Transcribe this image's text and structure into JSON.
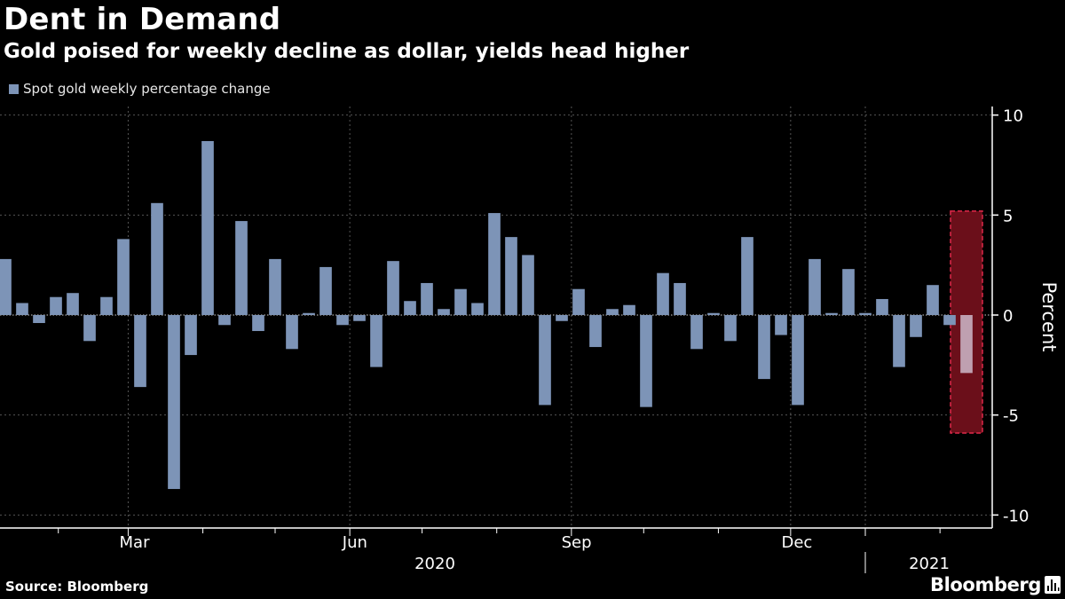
{
  "colors": {
    "background": "#000000",
    "bar": "#7d94b7",
    "highlight_bar": "#bfa0b0",
    "highlight_fill": "#6b0f1a",
    "highlight_border": "#e0284a",
    "grid": "#555555",
    "axis": "#ffffff"
  },
  "footer": {
    "source": "Source: Bloomberg",
    "brand": "Bloomberg",
    "brand_icon": "bloomberg-terminal-icon"
  },
  "chart_data": {
    "type": "bar",
    "title": "Dent in Demand",
    "subtitle": "Gold poised for weekly decline as dollar, yields head higher",
    "ylabel": "Percent",
    "ylim": [
      -10.5,
      10.5
    ],
    "yticks": [
      10,
      5,
      0,
      -5,
      -10
    ],
    "grid": true,
    "legend": {
      "position": "top-left"
    },
    "x_month_labels": [
      "Mar",
      "Jun",
      "Sep",
      "Dec"
    ],
    "x_year_labels": [
      "2020",
      "2021"
    ],
    "highlight_last_bar": true,
    "series": [
      {
        "name": "Spot gold weekly percentage change",
        "dates": [
          "2020-01-10",
          "2020-01-17",
          "2020-01-24",
          "2020-01-31",
          "2020-02-07",
          "2020-02-14",
          "2020-02-21",
          "2020-02-28",
          "2020-03-06",
          "2020-03-13",
          "2020-03-20",
          "2020-03-27",
          "2020-04-03",
          "2020-04-10",
          "2020-04-17",
          "2020-04-24",
          "2020-05-01",
          "2020-05-08",
          "2020-05-15",
          "2020-05-22",
          "2020-05-29",
          "2020-06-05",
          "2020-06-12",
          "2020-06-19",
          "2020-06-26",
          "2020-07-03",
          "2020-07-10",
          "2020-07-17",
          "2020-07-24",
          "2020-07-31",
          "2020-08-07",
          "2020-08-14",
          "2020-08-21",
          "2020-08-28",
          "2020-09-04",
          "2020-09-11",
          "2020-09-18",
          "2020-09-25",
          "2020-10-02",
          "2020-10-09",
          "2020-10-16",
          "2020-10-23",
          "2020-10-30",
          "2020-11-06",
          "2020-11-13",
          "2020-11-20",
          "2020-11-27",
          "2020-12-04",
          "2020-12-11",
          "2020-12-18",
          "2020-12-25",
          "2021-01-01",
          "2021-01-08",
          "2021-01-15",
          "2021-01-22",
          "2021-01-29",
          "2021-02-05",
          "2021-02-12"
        ],
        "values": [
          2.8,
          0.6,
          -0.4,
          0.9,
          1.1,
          -1.3,
          0.9,
          3.8,
          -3.6,
          5.6,
          -8.7,
          -2.0,
          8.7,
          -0.5,
          4.7,
          -0.8,
          2.8,
          -1.7,
          0.1,
          2.4,
          -0.5,
          -0.3,
          -2.6,
          2.7,
          0.7,
          1.6,
          0.3,
          1.3,
          0.6,
          5.1,
          3.9,
          3.0,
          -4.5,
          -0.3,
          1.3,
          -1.6,
          0.3,
          0.5,
          -4.6,
          2.1,
          1.6,
          -1.7,
          0.1,
          -1.3,
          3.9,
          -3.2,
          -1.0,
          -4.5,
          2.8,
          0.1,
          2.3,
          0.1,
          0.8,
          -2.6,
          -1.1,
          1.5,
          -0.5,
          -2.9
        ]
      }
    ]
  }
}
